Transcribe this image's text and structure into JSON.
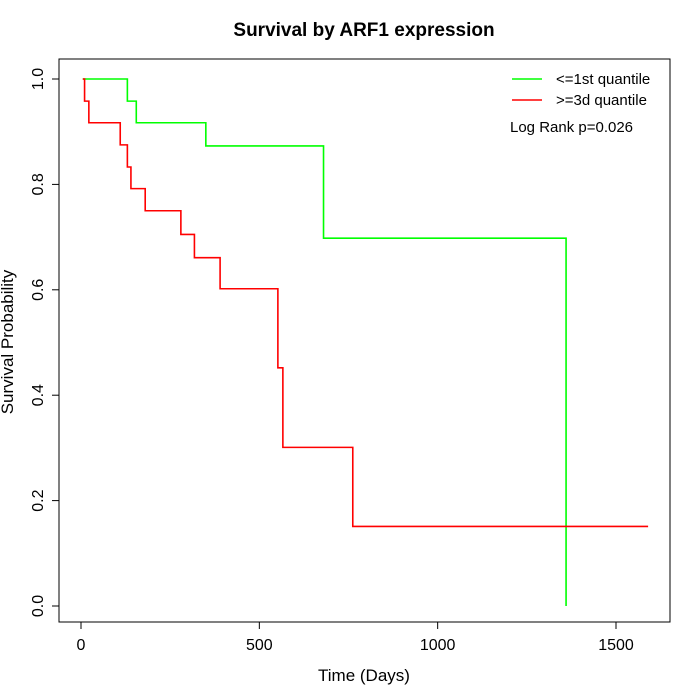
{
  "chart_data": {
    "type": "line",
    "title": "Survival by ARF1 expression",
    "xlabel": "Time (Days)",
    "ylabel": "Survival Probability",
    "xlim": [
      0,
      1600
    ],
    "ylim": [
      0,
      1.0
    ],
    "xticks": [
      0,
      500,
      1000,
      1500
    ],
    "yticks": [
      0.0,
      0.2,
      0.4,
      0.6,
      0.8,
      1.0
    ],
    "xtick_labels": [
      "0",
      "500",
      "1000",
      "1500"
    ],
    "ytick_labels": [
      "0.0",
      "0.2",
      "0.4",
      "0.6",
      "0.8",
      "1.0"
    ],
    "legend_position": "top-right",
    "annotation": "Log Rank p=0.026",
    "grid": false,
    "series": [
      {
        "name": "<=1st quantile",
        "color": "#00ff00",
        "step": true,
        "points": [
          [
            5,
            1.0
          ],
          [
            130,
            1.0
          ],
          [
            130,
            0.958
          ],
          [
            155,
            0.958
          ],
          [
            155,
            0.917
          ],
          [
            350,
            0.917
          ],
          [
            350,
            0.873
          ],
          [
            680,
            0.873
          ],
          [
            680,
            0.698
          ],
          [
            1360,
            0.698
          ],
          [
            1360,
            0.0
          ]
        ]
      },
      {
        "name": ">=3d quantile",
        "color": "#ff0000",
        "step": true,
        "points": [
          [
            5,
            1.0
          ],
          [
            10,
            1.0
          ],
          [
            10,
            0.958
          ],
          [
            22,
            0.958
          ],
          [
            22,
            0.917
          ],
          [
            110,
            0.917
          ],
          [
            110,
            0.875
          ],
          [
            130,
            0.875
          ],
          [
            130,
            0.833
          ],
          [
            140,
            0.833
          ],
          [
            140,
            0.792
          ],
          [
            180,
            0.792
          ],
          [
            180,
            0.75
          ],
          [
            280,
            0.75
          ],
          [
            280,
            0.705
          ],
          [
            318,
            0.705
          ],
          [
            318,
            0.661
          ],
          [
            390,
            0.661
          ],
          [
            390,
            0.602
          ],
          [
            552,
            0.602
          ],
          [
            552,
            0.452
          ],
          [
            566,
            0.452
          ],
          [
            566,
            0.301
          ],
          [
            762,
            0.301
          ],
          [
            762,
            0.151
          ],
          [
            1590,
            0.151
          ]
        ]
      }
    ]
  }
}
